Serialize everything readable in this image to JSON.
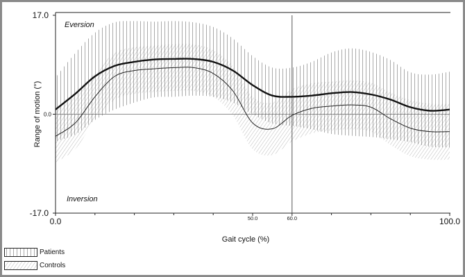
{
  "chart_data": {
    "type": "line",
    "title": "",
    "xlabel": "Gait cycle  (%)",
    "ylabel": "Range of motion  (°)",
    "xlim": [
      0,
      100
    ],
    "ylim": [
      -17,
      17
    ],
    "y_tick_labels": [
      "17.0",
      "0.0",
      "-17.0"
    ],
    "x_tick_labels": [
      "0.0",
      "50.0",
      "60.0",
      "100.0"
    ],
    "x_tick_values": [
      0,
      50,
      60,
      100
    ],
    "vertical_marker_x": 60,
    "annotations": {
      "top": "Eversion",
      "bottom": "Inversion"
    },
    "x": [
      0,
      5,
      10,
      15,
      20,
      25,
      30,
      35,
      40,
      45,
      50,
      55,
      60,
      65,
      70,
      75,
      80,
      85,
      90,
      95,
      100
    ],
    "series": [
      {
        "name": "Patients",
        "style": "thick",
        "hatch": "vertical",
        "color": "#111111",
        "values": [
          0.8,
          3.5,
          6.5,
          8.3,
          9.0,
          9.4,
          9.5,
          9.5,
          9.0,
          7.5,
          5.0,
          3.2,
          3.0,
          3.2,
          3.6,
          3.8,
          3.4,
          2.5,
          1.2,
          0.6,
          0.8
        ],
        "band": [
          5.5,
          7.0,
          7.5,
          7.5,
          7.0,
          6.5,
          6.5,
          6.3,
          6.0,
          5.5,
          5.0,
          4.8,
          5.0,
          5.8,
          7.0,
          7.5,
          7.3,
          6.8,
          6.0,
          6.2,
          6.5
        ]
      },
      {
        "name": "Controls",
        "style": "thin",
        "hatch": "diagonal",
        "color": "#222222",
        "values": [
          -3.8,
          -1.5,
          3.0,
          6.5,
          7.5,
          7.8,
          8.0,
          8.0,
          7.0,
          4.0,
          -1.5,
          -2.5,
          -0.2,
          1.0,
          1.4,
          1.6,
          1.2,
          -0.8,
          -2.4,
          -3.0,
          -3.0
        ],
        "band": [
          4.5,
          4.5,
          4.0,
          4.0,
          4.0,
          4.0,
          4.0,
          4.0,
          4.0,
          4.2,
          4.5,
          4.5,
          4.5,
          4.3,
          4.2,
          4.2,
          4.2,
          4.5,
          4.8,
          4.8,
          4.8
        ]
      }
    ],
    "legend": {
      "placement": "bottom-left",
      "entries": [
        "Patients",
        "Controls"
      ]
    },
    "grid": false
  }
}
